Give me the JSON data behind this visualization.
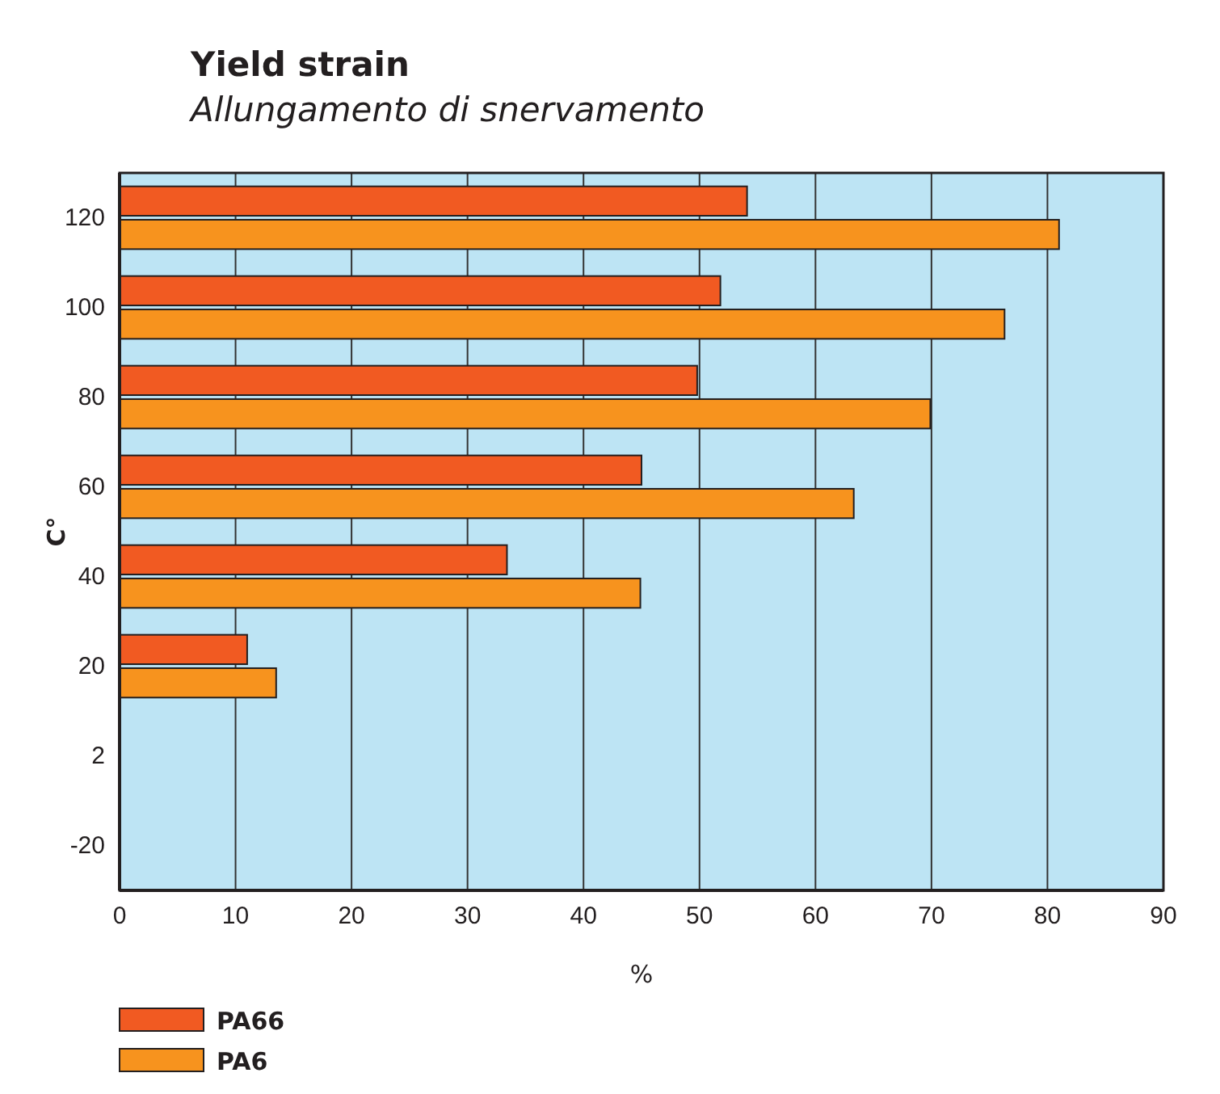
{
  "chart_data": {
    "type": "bar",
    "orientation": "horizontal",
    "title": "Yield strain",
    "subtitle": "Allungamento di snervamento",
    "xlabel": "%",
    "ylabel": "C°",
    "categories": [
      "120",
      "100",
      "80",
      "60",
      "40",
      "20",
      "2",
      "-20"
    ],
    "series": [
      {
        "name": "PA66",
        "color": "#f15a22",
        "values": [
          54.1,
          51.8,
          49.8,
          45.0,
          33.4,
          11.0,
          null,
          null
        ]
      },
      {
        "name": "PA6",
        "color": "#f7931e",
        "values": [
          81.0,
          76.3,
          69.9,
          63.3,
          44.9,
          13.5,
          null,
          null
        ]
      }
    ],
    "xlim": [
      0,
      90
    ],
    "xticks": [
      0,
      10,
      20,
      30,
      40,
      50,
      60,
      70,
      80,
      90
    ],
    "grid": "x",
    "legend": "bottom left"
  }
}
